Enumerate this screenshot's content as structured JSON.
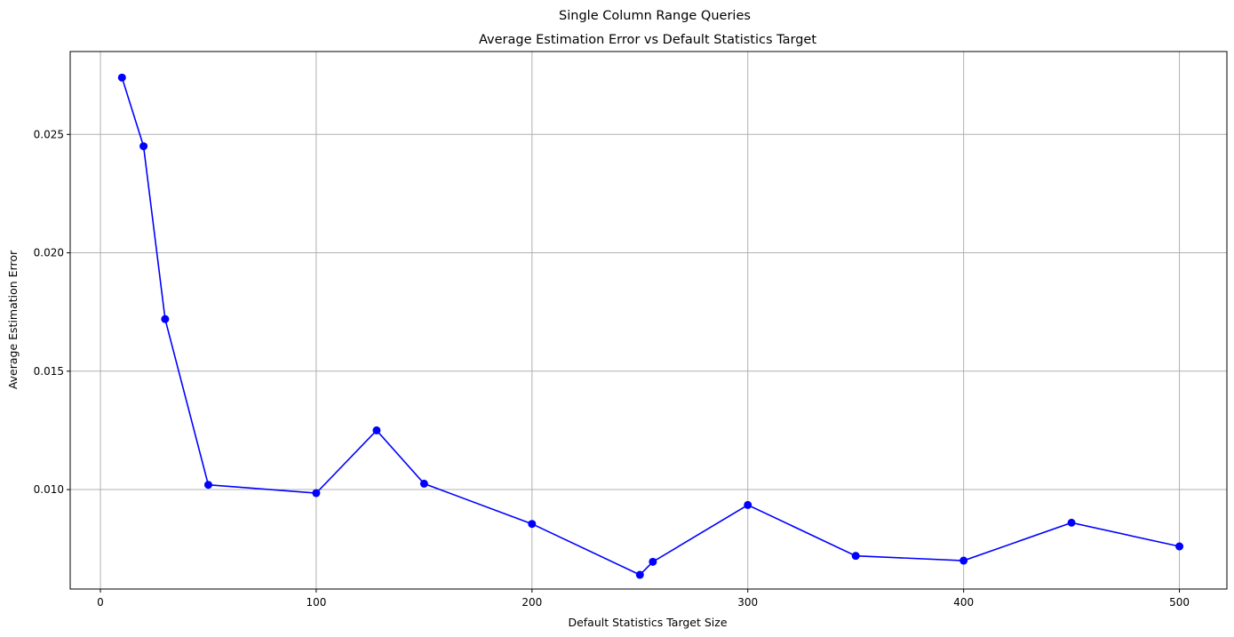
{
  "figure": {
    "suptitle": "Single Column Range Queries"
  },
  "chart_data": {
    "type": "line",
    "title": "Average Estimation Error vs Default Statistics Target",
    "xlabel": "Default Statistics Target Size",
    "ylabel": "Average Estimation Error",
    "xlim": [
      -14,
      522
    ],
    "ylim": [
      0.0058,
      0.0285
    ],
    "xticks": [
      0,
      100,
      200,
      300,
      400,
      500
    ],
    "xtick_labels": [
      "0",
      "100",
      "200",
      "300",
      "400",
      "500"
    ],
    "yticks": [
      0.01,
      0.015,
      0.02,
      0.025
    ],
    "ytick_labels": [
      "0.010",
      "0.015",
      "0.020",
      "0.025"
    ],
    "grid": true,
    "series": [
      {
        "color": "#0000ff",
        "marker": "circle",
        "x": [
          10,
          20,
          30,
          50,
          100,
          128,
          150,
          200,
          250,
          256,
          300,
          350,
          400,
          450,
          500
        ],
        "y": [
          0.0274,
          0.0245,
          0.0172,
          0.0102,
          0.00985,
          0.0125,
          0.01025,
          0.00855,
          0.0064,
          0.00695,
          0.00935,
          0.0072,
          0.007,
          0.0086,
          0.0076
        ]
      }
    ]
  }
}
